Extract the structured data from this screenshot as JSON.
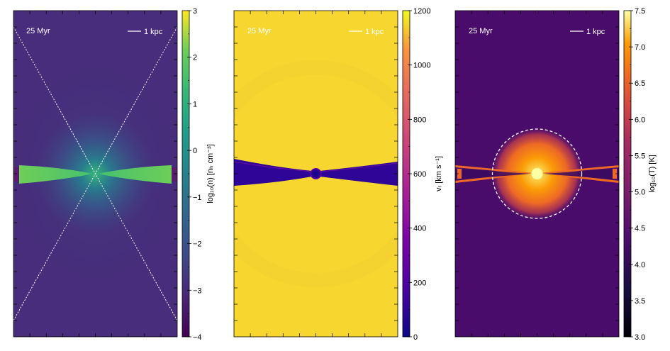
{
  "chart_data": [
    {
      "type": "heatmap",
      "quantity": "density",
      "colormap": "viridis",
      "time_label": "25 Myr",
      "scalebar_label": "1 kpc",
      "colorbar": {
        "label": "log₁₀(n) [nₕ cm⁻³]",
        "vmin": -4,
        "vmax": 3,
        "ticks": [
          3,
          2,
          1,
          0,
          -1,
          -2,
          -3,
          -4
        ],
        "tick_labels": [
          "3",
          "2",
          "1",
          "0",
          "−1",
          "−2",
          "−3",
          "−4"
        ]
      },
      "background_level": -3.2,
      "disk_level": 0.5,
      "overlay": "dashed X-shaped cone lines through center"
    },
    {
      "type": "heatmap",
      "quantity": "radial velocity",
      "colormap": "plasma",
      "time_label": "25 Myr",
      "scalebar_label": "1 kpc",
      "colorbar": {
        "label": "vᵣ [km s⁻¹]",
        "vmin": 0,
        "vmax": 1200,
        "ticks": [
          1200,
          1000,
          800,
          600,
          400,
          200,
          0
        ],
        "tick_labels": [
          "1200",
          "1000",
          "800",
          "600",
          "400",
          "200",
          "0"
        ]
      },
      "background_level": 1150,
      "disk_level": 60
    },
    {
      "type": "heatmap",
      "quantity": "temperature",
      "colormap": "inferno",
      "time_label": "25 Myr",
      "scalebar_label": "1 kpc",
      "colorbar": {
        "label": "log₁₀(T) [K]",
        "vmin": 3.0,
        "vmax": 7.5,
        "ticks": [
          7.5,
          7.0,
          6.5,
          6.0,
          5.5,
          5.0,
          4.5,
          4.0,
          3.5,
          3.0
        ],
        "tick_labels": [
          "7.5",
          "7.0",
          "6.5",
          "6.0",
          "5.5",
          "5.0",
          "4.5",
          "4.0",
          "3.5",
          "3.0"
        ]
      },
      "background_level": 4.4,
      "halo_level": 6.6,
      "core_level": 7.4,
      "overlay": "dashed circle around central hot region"
    }
  ]
}
